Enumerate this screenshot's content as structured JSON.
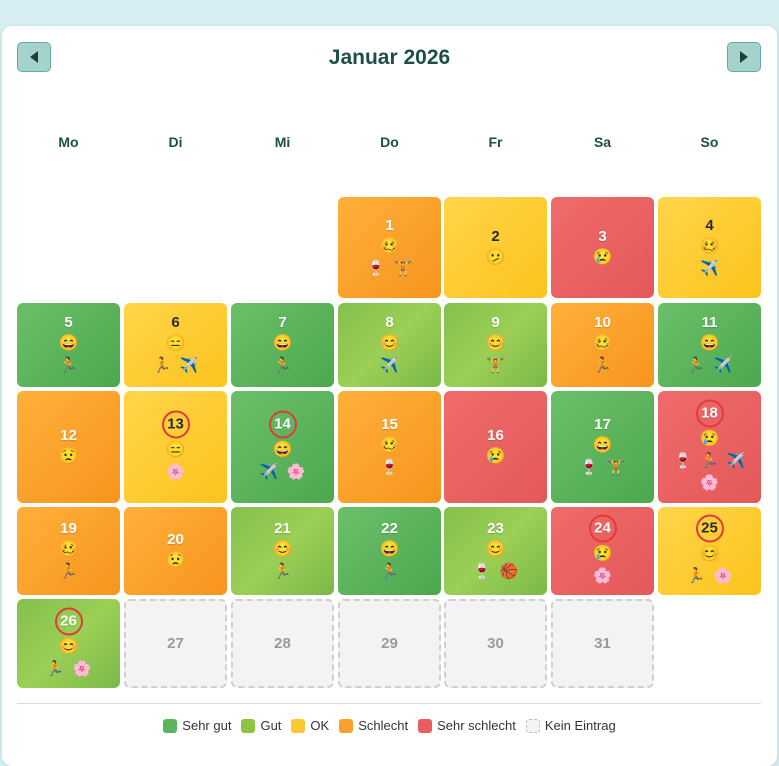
{
  "header": {
    "title": "Januar 2026"
  },
  "weekdays": [
    "Mo",
    "Di",
    "Mi",
    "Do",
    "Fr",
    "Sa",
    "So"
  ],
  "first_weekday_index": 3,
  "days": [
    {
      "n": "1",
      "status": "sc",
      "mood": "🥴",
      "acts": [
        "🍷",
        "🏋️"
      ]
    },
    {
      "n": "2",
      "status": "ok",
      "mood": "🫤",
      "acts": []
    },
    {
      "n": "3",
      "status": "ss",
      "mood": "😢",
      "acts": []
    },
    {
      "n": "4",
      "status": "ok",
      "mood": "🥴",
      "acts": [
        "✈️"
      ]
    },
    {
      "n": "5",
      "status": "sg",
      "mood": "😄",
      "acts": [
        "🏃"
      ]
    },
    {
      "n": "6",
      "status": "ok",
      "mood": "😑",
      "acts": [
        "🏃",
        "✈️"
      ]
    },
    {
      "n": "7",
      "status": "sg",
      "mood": "😄",
      "acts": [
        "🏃"
      ]
    },
    {
      "n": "8",
      "status": "g",
      "mood": "😊",
      "acts": [
        "✈️"
      ]
    },
    {
      "n": "9",
      "status": "g",
      "mood": "😊",
      "acts": [
        "🏋️"
      ]
    },
    {
      "n": "10",
      "status": "sc",
      "mood": "🥴",
      "acts": [
        "🏃"
      ]
    },
    {
      "n": "11",
      "status": "sg",
      "mood": "😄",
      "acts": [
        "🏃",
        "✈️"
      ]
    },
    {
      "n": "12",
      "status": "sc",
      "mood": "😟",
      "acts": []
    },
    {
      "n": "13",
      "status": "ok",
      "mood": "😑",
      "acts": [
        "🌸"
      ],
      "highlight": true
    },
    {
      "n": "14",
      "status": "sg",
      "mood": "😄",
      "acts": [
        "✈️",
        "🌸"
      ],
      "highlight": true
    },
    {
      "n": "15",
      "status": "sc",
      "mood": "🥴",
      "acts": [
        "🍷"
      ]
    },
    {
      "n": "16",
      "status": "ss",
      "mood": "😢",
      "acts": []
    },
    {
      "n": "17",
      "status": "sg",
      "mood": "😄",
      "acts": [
        "🍷",
        "🏋️"
      ]
    },
    {
      "n": "18",
      "status": "ss",
      "mood": "😢",
      "acts": [
        "🍷",
        "🏃",
        "✈️",
        "🌸"
      ],
      "highlight": true
    },
    {
      "n": "19",
      "status": "sc",
      "mood": "🥴",
      "acts": [
        "🏃"
      ]
    },
    {
      "n": "20",
      "status": "sc",
      "mood": "😟",
      "acts": []
    },
    {
      "n": "21",
      "status": "g",
      "mood": "😊",
      "acts": [
        "🏃"
      ]
    },
    {
      "n": "22",
      "status": "sg",
      "mood": "😄",
      "acts": [
        "🏃"
      ]
    },
    {
      "n": "23",
      "status": "g",
      "mood": "😊",
      "acts": [
        "🍷",
        "🏀"
      ]
    },
    {
      "n": "24",
      "status": "ss",
      "mood": "😢",
      "acts": [
        "🌸"
      ],
      "highlight": true
    },
    {
      "n": "25",
      "status": "ok",
      "mood": "😊",
      "acts": [
        "🏃",
        "🌸"
      ],
      "highlight": true
    },
    {
      "n": "26",
      "status": "g",
      "mood": "😊",
      "acts": [
        "🏃",
        "🌸"
      ],
      "highlight": true
    },
    {
      "n": "27",
      "status": "ne",
      "mood": "",
      "acts": []
    },
    {
      "n": "28",
      "status": "ne",
      "mood": "",
      "acts": []
    },
    {
      "n": "29",
      "status": "ne",
      "mood": "",
      "acts": []
    },
    {
      "n": "30",
      "status": "ne",
      "mood": "",
      "acts": []
    },
    {
      "n": "31",
      "status": "ne",
      "mood": "",
      "acts": []
    }
  ],
  "legend": [
    {
      "label": "Sehr gut",
      "color": "#5bb55c"
    },
    {
      "label": "Gut",
      "color": "#8cc63f"
    },
    {
      "label": "OK",
      "color": "#fcc830"
    },
    {
      "label": "Schlecht",
      "color": "#f9a12a"
    },
    {
      "label": "Sehr schlecht",
      "color": "#e85d5d"
    },
    {
      "label": "Kein Eintrag",
      "color": "#f3f3f3"
    }
  ],
  "icons": {
    "prev": "triangle-left-icon",
    "next": "triangle-right-icon"
  }
}
